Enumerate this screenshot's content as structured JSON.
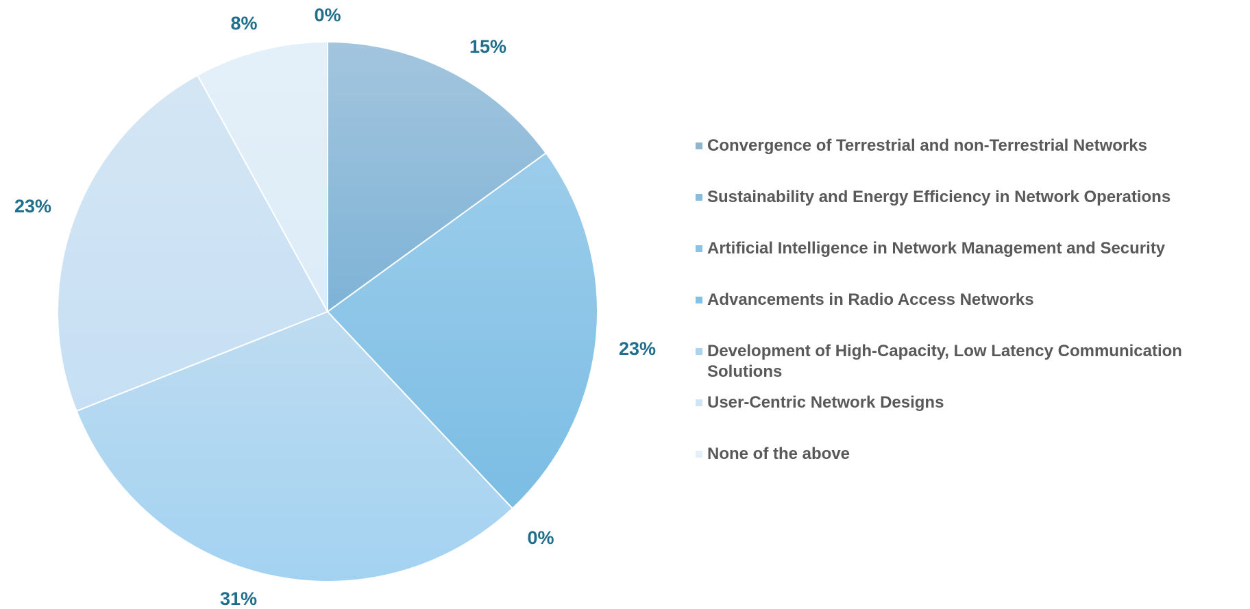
{
  "chart_data": {
    "type": "pie",
    "title": "",
    "categories": [
      "Convergence of Terrestrial and non-Terrestrial Networks",
      "Sustainability and Energy Efficiency in Network Operations",
      "Artificial Intelligence in Network Management and Security",
      "Advancements in Radio Access Networks",
      "Development of High-Capacity, Low Latency Communication Solutions",
      "User-Centric Network Designs",
      "None of the above"
    ],
    "values": [
      15,
      23,
      0,
      31,
      23,
      8,
      0
    ],
    "labels": [
      "15%",
      "23%",
      "0%",
      "31%",
      "23%",
      "8%",
      "0%"
    ],
    "colors": [
      [
        "#a3c5de",
        "#7eb3d6"
      ],
      [
        "#9ccdeb",
        "#7bbde4"
      ],
      [
        "#8ec6ea",
        "#7cbfe6"
      ],
      [
        "#bedcf1",
        "#a3d2f1"
      ],
      [
        "#d4e6f4",
        "#c6dff4"
      ],
      [
        "#e4f0f9",
        "#dcecf8"
      ],
      [
        "#eef5fb",
        "#e6f1fa"
      ]
    ],
    "legend": {
      "position": "right",
      "items": [
        {
          "label": "Convergence of Terrestrial and non-Terrestrial Networks",
          "swatch": "#8fb5cf"
        },
        {
          "label": "Sustainability and Energy Efficiency in Network Operations",
          "swatch": "#87bbe0"
        },
        {
          "label": "Artificial Intelligence in Network Management and Security",
          "swatch": "#8ac3e8"
        },
        {
          "label": "Advancements in Radio Access Networks",
          "swatch": "#7fc3ec"
        },
        {
          "label": "Development of High-Capacity, Low Latency Communication Solutions",
          "swatch": "#a9d3ef"
        },
        {
          "label": "User-Centric Network Designs",
          "swatch": "#cfe4f5"
        },
        {
          "label": "None of the above",
          "swatch": "#e3f0fa"
        }
      ]
    },
    "label_color": "#1f6e8c",
    "legend_text_color": "#595959",
    "start_angle_deg": 0,
    "direction": "clockwise"
  }
}
